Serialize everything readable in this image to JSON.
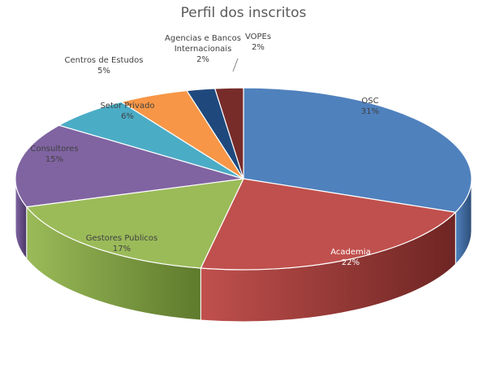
{
  "chart_data": {
    "type": "pie",
    "title": "Perfil dos inscritos",
    "slices": [
      {
        "name": "OSC",
        "value": 31,
        "label": "31%",
        "color": "#4F81BD",
        "side": "#2E4E78"
      },
      {
        "name": "Academia",
        "value": 22,
        "label": "22%",
        "color": "#C0504D",
        "side": "#6E2523"
      },
      {
        "name": "Gestores Publicos",
        "value": 17,
        "label": "17%",
        "color": "#9BBB59",
        "side": "#5E7A2C"
      },
      {
        "name": "Consultores",
        "value": 15,
        "label": "15%",
        "color": "#8064A2",
        "side": "#4B3766"
      },
      {
        "name": "Setor Privado",
        "value": 6,
        "label": "6%",
        "color": "#4BACC6",
        "side": "#266E80"
      },
      {
        "name": "Centros de Estudos",
        "value": 5,
        "label": "5%",
        "color": "#F79646",
        "side": "#A85D1F"
      },
      {
        "name": "Agencias e Bancos Internacionais",
        "value": 2,
        "label": "2%",
        "color": "#1F497D",
        "side": "#102845"
      },
      {
        "name": "VOPEs",
        "value": 2,
        "label": "2%",
        "color": "#772C2A",
        "side": "#3E1514"
      }
    ],
    "legend": "none",
    "style": "3d-pie"
  }
}
